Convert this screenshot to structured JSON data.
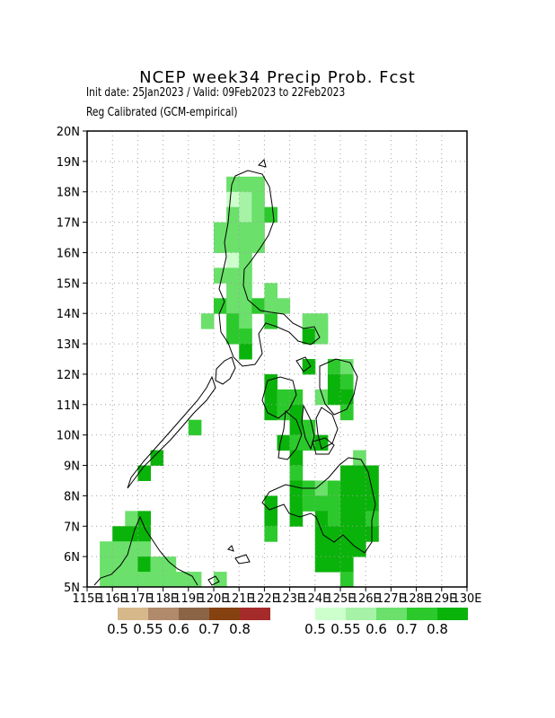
{
  "title": "NCEP week34 Precip Prob. Fcst",
  "subtitle_line1": "Init date: 25Jan2023 / Valid: 09Feb2023 to 22Feb2023",
  "subtitle_line2": "Reg Calibrated (GCM-empirical)",
  "map": {
    "lon_range": [
      115,
      130
    ],
    "lat_range": [
      5,
      20
    ],
    "lon_tick_labels": [
      "115E",
      "116E",
      "117E",
      "118E",
      "119E",
      "120E",
      "121E",
      "122E",
      "123E",
      "124E",
      "125E",
      "126E",
      "127E",
      "128E",
      "129E",
      "130E"
    ],
    "lat_tick_labels": [
      "5N",
      "6N",
      "7N",
      "8N",
      "9N",
      "10N",
      "11N",
      "12N",
      "13N",
      "14N",
      "15N",
      "16N",
      "17N",
      "18N",
      "19N",
      "20N"
    ],
    "grid": "dotted"
  },
  "legend_dry": {
    "colors": [
      "#d7b88a",
      "#b08a6a",
      "#8b6446",
      "#85410f",
      "#a52a2a"
    ],
    "labels": [
      "0.5",
      "0.55",
      "0.6",
      "0.7",
      "0.8"
    ]
  },
  "legend_wet": {
    "colors": [
      "#ccffcc",
      "#a6f2a6",
      "#6be06b",
      "#2cc92c",
      "#0ab30a"
    ],
    "labels": [
      "0.5",
      "0.55",
      "0.6",
      "0.7",
      "0.8"
    ]
  }
}
